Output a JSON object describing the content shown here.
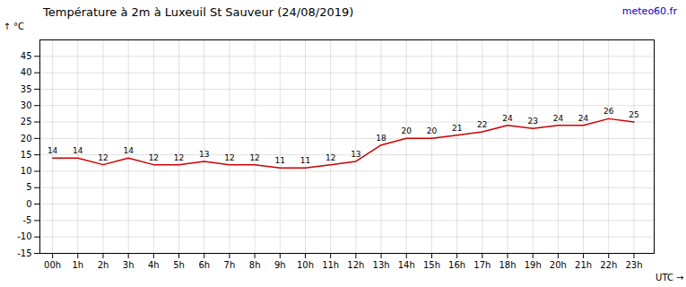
{
  "chart_data": {
    "type": "line",
    "title": "Température à 2m à Luxeuil St Sauveur (24/08/2019)",
    "x_label": "UTC",
    "y_label": "°C",
    "annotations": [
      {
        "text": "meteo60.fr",
        "color": "#0000cc"
      }
    ],
    "x": [
      0,
      1,
      2,
      3,
      4,
      5,
      6,
      7,
      8,
      9,
      10,
      11,
      12,
      13,
      14,
      15,
      16,
      17,
      18,
      19,
      20,
      21,
      22,
      23
    ],
    "values": [
      14,
      14,
      12,
      14,
      12,
      12,
      13,
      12,
      12,
      11,
      11,
      12,
      13,
      18,
      20,
      20,
      21,
      22,
      24,
      23,
      24,
      24,
      26,
      25
    ],
    "color": "#cc0000",
    "data_labels": true,
    "grid": true,
    "xlim": [
      -0.5,
      23.8
    ],
    "xticks": [
      {
        "value": 0,
        "label": "00h"
      },
      {
        "value": 1,
        "label": "1h"
      },
      {
        "value": 2,
        "label": "2h"
      },
      {
        "value": 3,
        "label": "3h"
      },
      {
        "value": 4,
        "label": "4h"
      },
      {
        "value": 5,
        "label": "5h"
      },
      {
        "value": 6,
        "label": "6h"
      },
      {
        "value": 7,
        "label": "7h"
      },
      {
        "value": 8,
        "label": "8h"
      },
      {
        "value": 9,
        "label": "9h"
      },
      {
        "value": 10,
        "label": "10h"
      },
      {
        "value": 11,
        "label": "11h"
      },
      {
        "value": 12,
        "label": "12h"
      },
      {
        "value": 13,
        "label": "13h"
      },
      {
        "value": 14,
        "label": "14h"
      },
      {
        "value": 15,
        "label": "15h"
      },
      {
        "value": 16,
        "label": "16h"
      },
      {
        "value": 17,
        "label": "17h"
      },
      {
        "value": 18,
        "label": "18h"
      },
      {
        "value": 19,
        "label": "19h"
      },
      {
        "value": 20,
        "label": "20h"
      },
      {
        "value": 21,
        "label": "21h"
      },
      {
        "value": 22,
        "label": "22h"
      },
      {
        "value": 23,
        "label": "23h"
      }
    ],
    "ylim": [
      -15,
      50
    ],
    "yticks": [
      -15,
      -10,
      -5,
      0,
      5,
      10,
      15,
      20,
      25,
      30,
      35,
      40,
      45
    ]
  }
}
